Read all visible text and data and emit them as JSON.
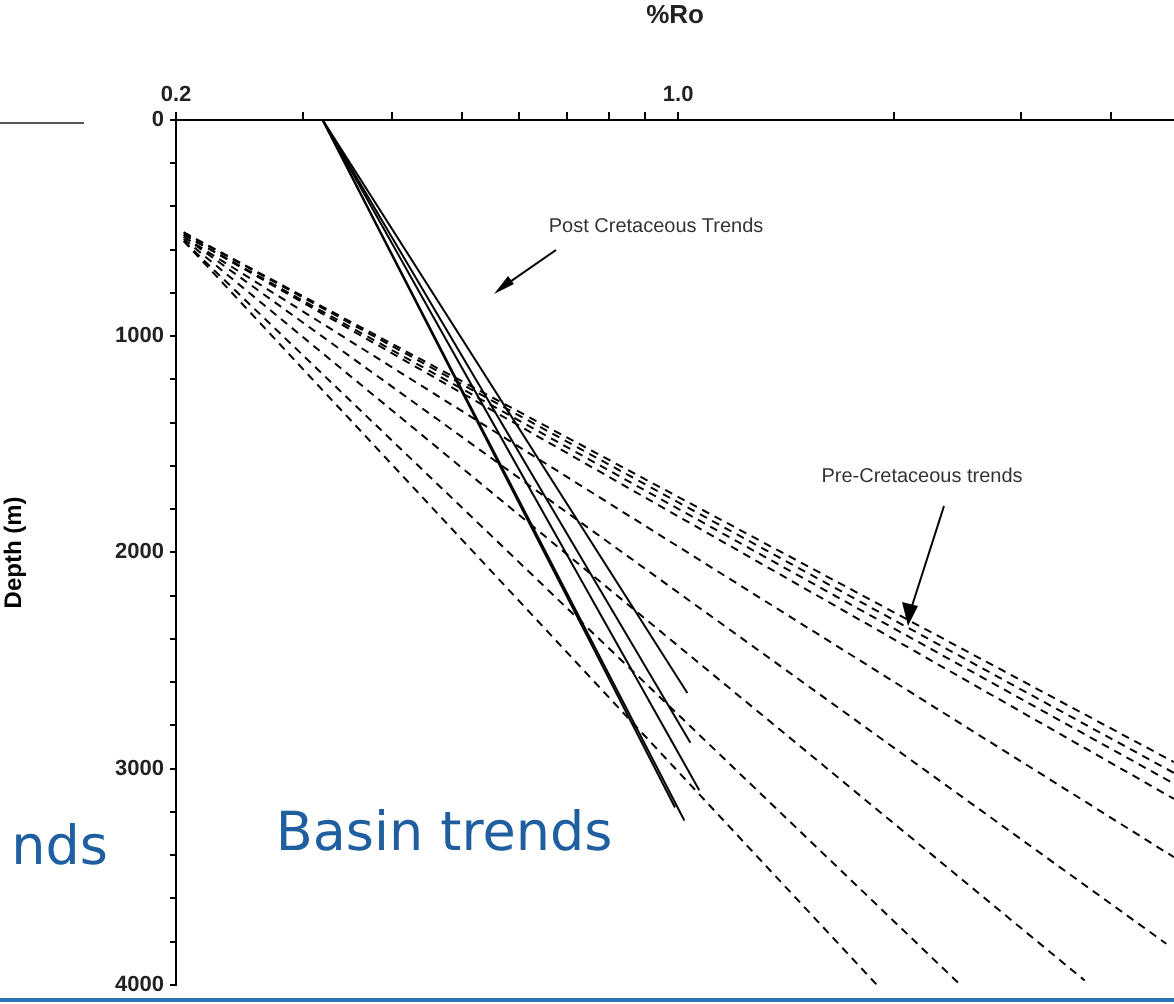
{
  "chart_data": {
    "type": "line",
    "xlabel": "%Ro",
    "ylabel": "Depth (m)",
    "log": "x",
    "xlim": [
      0.2,
      4.9
    ],
    "xticks": [
      0.2,
      {
        "value": 0.3,
        "label": null
      },
      {
        "value": 0.4,
        "label": null
      },
      {
        "value": 0.5,
        "label": null
      },
      {
        "value": 0.6,
        "label": null
      },
      {
        "value": 0.7,
        "label": null
      },
      {
        "value": 0.8,
        "label": null
      },
      {
        "value": 0.9,
        "label": null
      },
      {
        "value": 1,
        "label": "1.0"
      },
      {
        "value": 2,
        "label": null
      },
      {
        "value": 3,
        "label": null
      },
      {
        "value": 4,
        "label": null
      }
    ],
    "ylim": [
      4000,
      0
    ],
    "yticks": [
      0,
      {
        "value": 200,
        "label": null
      },
      {
        "value": 400,
        "label": null
      },
      {
        "value": 600,
        "label": null
      },
      {
        "value": 800,
        "label": null
      },
      1000,
      {
        "value": 1200,
        "label": null
      },
      {
        "value": 1400,
        "label": null
      },
      {
        "value": 1600,
        "label": null
      },
      {
        "value": 1800,
        "label": null
      },
      2000,
      {
        "value": 2200,
        "label": null
      },
      {
        "value": 2400,
        "label": null
      },
      {
        "value": 2600,
        "label": null
      },
      {
        "value": 2800,
        "label": null
      },
      3000,
      {
        "value": 3200,
        "label": null
      },
      {
        "value": 3400,
        "label": null
      },
      {
        "value": 3600,
        "label": null
      },
      {
        "value": 3800,
        "label": null
      },
      4000
    ],
    "grid": false,
    "legend": false,
    "marker": "none",
    "series": [
      {
        "color": "#000000",
        "line_style": "solid",
        "x": [
          0.32,
          1.03
        ],
        "values": [
          0,
          2650
        ]
      },
      {
        "color": "#000000",
        "line_style": "solid",
        "x": [
          0.32,
          1.04
        ],
        "values": [
          0,
          2880
        ]
      },
      {
        "color": "#000000",
        "line_style": "solid",
        "x": [
          0.32,
          1.07
        ],
        "values": [
          0,
          3100
        ]
      },
      {
        "color": "#000000",
        "line_style": "solid",
        "x": [
          0.32,
          0.99
        ],
        "values": [
          0,
          3180
        ]
      },
      {
        "color": "#000000",
        "line_style": "solid",
        "x": [
          0.32,
          1.02
        ],
        "values": [
          0,
          3240
        ]
      },
      {
        "color": "#000000",
        "line_style": "dashed",
        "x": [
          0.205,
          4.9
        ],
        "values": [
          520,
          2970
        ]
      },
      {
        "color": "#000000",
        "line_style": "dashed",
        "x": [
          0.205,
          4.9
        ],
        "values": [
          520,
          3020
        ]
      },
      {
        "color": "#000000",
        "line_style": "dashed",
        "x": [
          0.205,
          4.9
        ],
        "values": [
          530,
          3070
        ]
      },
      {
        "color": "#000000",
        "line_style": "dashed",
        "x": [
          0.205,
          4.9
        ],
        "values": [
          530,
          3140
        ]
      },
      {
        "color": "#000000",
        "line_style": "dashed",
        "x": [
          0.205,
          4.9
        ],
        "values": [
          540,
          3410
        ]
      },
      {
        "color": "#000000",
        "line_style": "dashed",
        "x": [
          0.205,
          4.78
        ],
        "values": [
          540,
          3810
        ]
      },
      {
        "color": "#000000",
        "line_style": "dashed",
        "x": [
          0.205,
          3.68
        ],
        "values": [
          550,
          3980
        ]
      },
      {
        "color": "#000000",
        "line_style": "dashed",
        "x": [
          0.205,
          2.47
        ],
        "values": [
          560,
          4000
        ]
      },
      {
        "color": "#000000",
        "line_style": "dashed",
        "x": [
          0.205,
          1.89
        ],
        "values": [
          560,
          4000
        ]
      }
    ],
    "annotations": [
      "Post Cretaceous Trends",
      "Pre-Cretaceous trends",
      "Basin trends",
      "nds"
    ]
  }
}
